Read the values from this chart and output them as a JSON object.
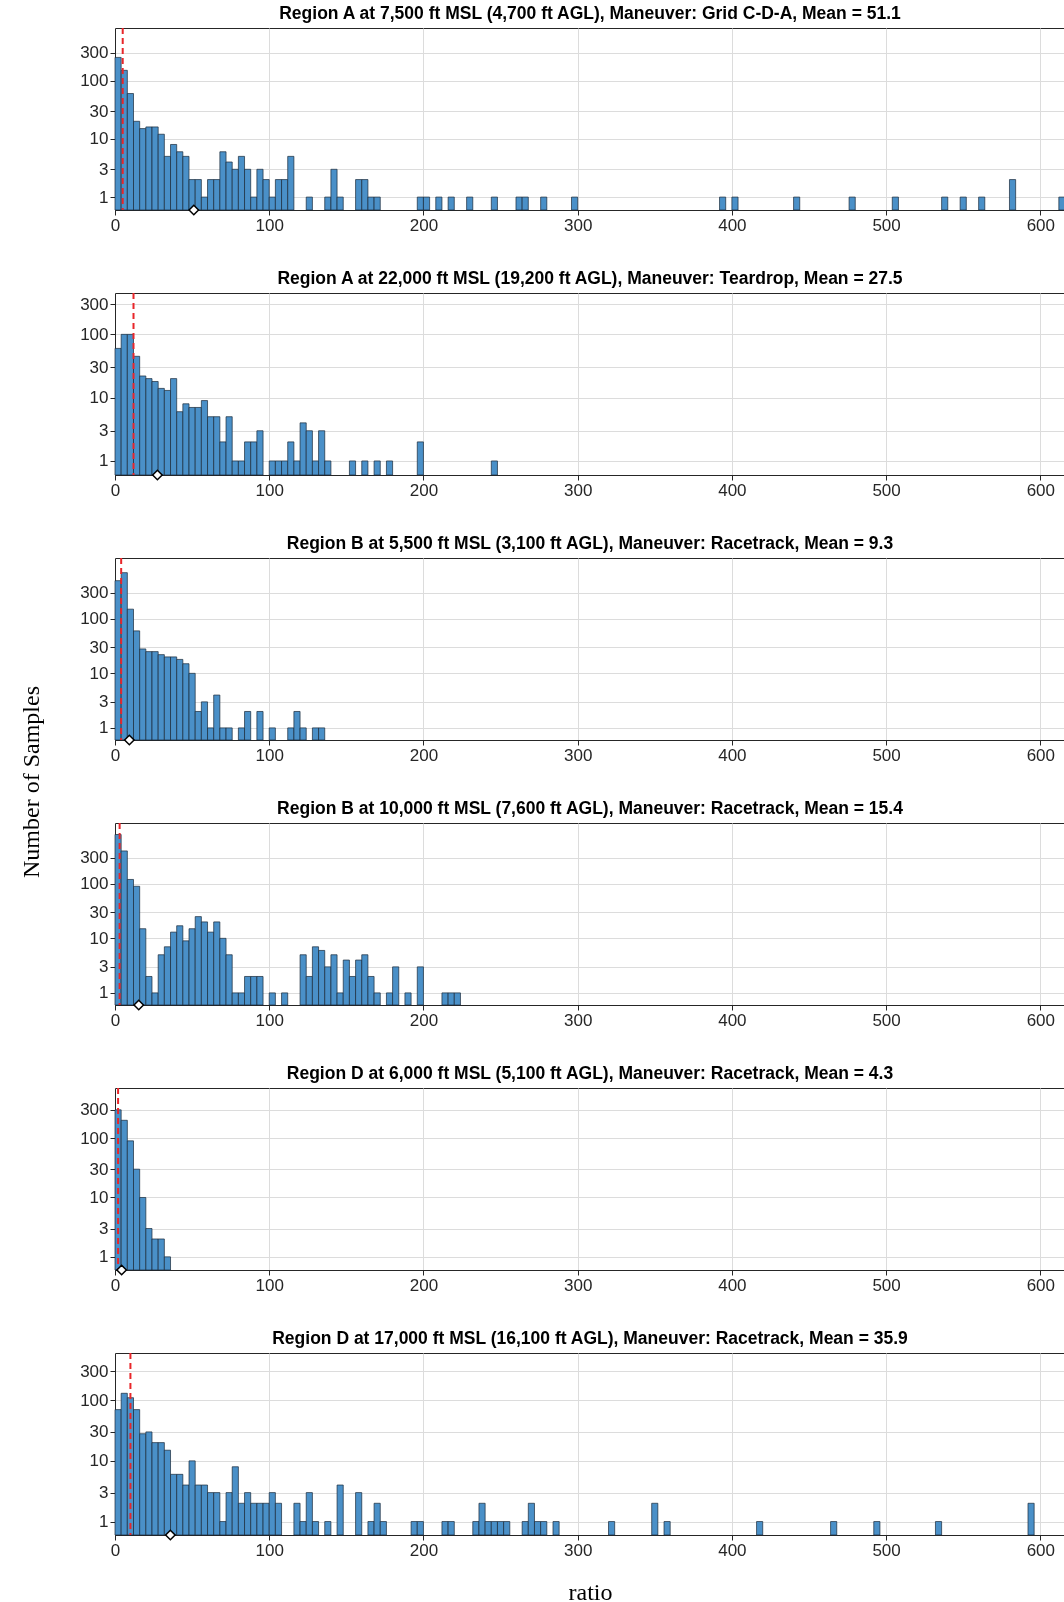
{
  "chart_data": [
    {
      "type": "histogram",
      "title": "Region A at 7,500 ft MSL (4,700 ft AGL), Maneuver: Grid C-D-A, Mean = 51.1",
      "color": "#4a90c8",
      "log": true,
      "grid": true,
      "xlim": [
        0,
        616
      ],
      "xticks": [
        0,
        100,
        200,
        300,
        400,
        500,
        600
      ],
      "ylim": [
        0.6,
        800
      ],
      "yticks": [
        1,
        3,
        10,
        30,
        100,
        300
      ],
      "bins": [
        0,
        4,
        8,
        12,
        16,
        20,
        24,
        28,
        32,
        36,
        40,
        44,
        48,
        52,
        56,
        60,
        64,
        68,
        72,
        76,
        80,
        84,
        88,
        92,
        96,
        100,
        104,
        108,
        112,
        116,
        120,
        124,
        128,
        132,
        136,
        140,
        144,
        148,
        152,
        156,
        160,
        164,
        168,
        172,
        176,
        180,
        184,
        188,
        192,
        196,
        200,
        204,
        208,
        212,
        216,
        220,
        224,
        228,
        232,
        236,
        240,
        244,
        248,
        252,
        256,
        260,
        264,
        268,
        272,
        276,
        280,
        284,
        288,
        292,
        296,
        300,
        304,
        308,
        312,
        316,
        320,
        324,
        328,
        332,
        336,
        340,
        344,
        348,
        352,
        356,
        360,
        364,
        368,
        372,
        376,
        380,
        384,
        388,
        392,
        396,
        400,
        404,
        408,
        412,
        416,
        420,
        424,
        428,
        432,
        436,
        440,
        444,
        448,
        452,
        456,
        460,
        464,
        468,
        472,
        476,
        480,
        484,
        488,
        492,
        496,
        500,
        504,
        508,
        512,
        516,
        520,
        524,
        528,
        532,
        536,
        540,
        544,
        548,
        552,
        556,
        560,
        564,
        568,
        572,
        576,
        580,
        584,
        588,
        592,
        596,
        600,
        604,
        608,
        612,
        616
      ],
      "values": [
        250,
        150,
        60,
        20,
        15,
        16,
        16,
        12,
        5,
        8,
        6,
        5,
        2,
        2,
        1,
        2,
        2,
        6,
        4,
        3,
        5,
        3,
        1,
        3,
        2,
        1,
        2,
        2,
        5,
        null,
        null,
        1,
        null,
        null,
        1,
        3,
        1,
        null,
        null,
        2,
        2,
        1,
        1,
        null,
        null,
        null,
        null,
        null,
        null,
        1,
        1,
        null,
        1,
        null,
        1,
        null,
        null,
        1,
        null,
        null,
        null,
        1,
        null,
        null,
        null,
        1,
        1,
        null,
        null,
        1,
        null,
        null,
        null,
        null,
        1,
        null,
        null,
        null,
        null,
        null,
        null,
        null,
        null,
        null,
        null,
        null,
        null,
        null,
        null,
        null,
        null,
        null,
        null,
        null,
        null,
        null,
        null,
        null,
        1,
        null,
        1,
        null,
        null,
        null,
        null,
        null,
        null,
        null,
        null,
        null,
        1,
        null,
        null,
        null,
        null,
        null,
        null,
        null,
        null,
        1,
        null,
        null,
        null,
        null,
        null,
        null,
        1,
        null,
        null,
        null,
        null,
        null,
        null,
        null,
        1,
        null,
        null,
        1,
        null,
        null,
        1,
        null,
        null,
        null,
        null,
        2,
        null,
        null,
        null,
        null,
        null,
        null,
        null,
        1
      ],
      "ref_lines": [
        {
          "axis": "x",
          "value": 5,
          "color": "#e8262a",
          "line_style": "dashed"
        }
      ],
      "series": [
        {
          "type": "scatter",
          "x": [
            51.1
          ],
          "values": [
            0.6
          ],
          "color": "#000000",
          "marker": "diamond"
        }
      ]
    },
    {
      "type": "histogram",
      "title": "Region A at 22,000 ft MSL (19,200 ft AGL), Maneuver: Teardrop, Mean = 27.5",
      "color": "#4a90c8",
      "log": true,
      "grid": true,
      "xlim": [
        0,
        616
      ],
      "xticks": [
        0,
        100,
        200,
        300,
        400,
        500,
        600
      ],
      "ylim": [
        0.6,
        450
      ],
      "yticks": [
        1,
        3,
        10,
        30,
        100,
        300
      ],
      "bins": [
        0,
        4,
        8,
        12,
        16,
        20,
        24,
        28,
        32,
        36,
        40,
        44,
        48,
        52,
        56,
        60,
        64,
        68,
        72,
        76,
        80,
        84,
        88,
        92,
        96,
        100,
        104,
        108,
        112,
        116,
        120,
        124,
        128,
        132,
        136,
        140,
        144,
        148,
        152,
        156,
        160,
        164,
        168,
        172,
        176,
        180,
        184,
        188,
        192,
        196,
        200,
        204,
        208,
        212,
        216,
        220,
        224,
        228,
        232,
        236,
        240,
        244,
        248
      ],
      "values": [
        60,
        100,
        100,
        45,
        22,
        20,
        18,
        14,
        13,
        20,
        6,
        8,
        7,
        7,
        9,
        5,
        5,
        2,
        5,
        1,
        1,
        2,
        2,
        3,
        null,
        1,
        1,
        1,
        2,
        1,
        4,
        3,
        1,
        3,
        1,
        null,
        null,
        null,
        1,
        null,
        1,
        null,
        1,
        null,
        1,
        null,
        null,
        null,
        null,
        2,
        null,
        null,
        null,
        null,
        null,
        null,
        null,
        null,
        null,
        null,
        null,
        1
      ],
      "ref_lines": [
        {
          "axis": "x",
          "value": 12,
          "color": "#e8262a",
          "line_style": "dashed"
        }
      ],
      "series": [
        {
          "type": "scatter",
          "x": [
            27.5
          ],
          "values": [
            0.6
          ],
          "color": "#000000",
          "marker": "diamond"
        }
      ]
    },
    {
      "type": "histogram",
      "title": "Region B at 5,500 ft MSL (3,100 ft AGL), Maneuver: Racetrack, Mean = 9.3",
      "ylabel": "Number of Samples",
      "color": "#4a90c8",
      "log": true,
      "grid": true,
      "xlim": [
        0,
        616
      ],
      "xticks": [
        0,
        100,
        200,
        300,
        400,
        500,
        600
      ],
      "ylim": [
        0.6,
        1300
      ],
      "yticks": [
        1,
        3,
        10,
        30,
        100,
        300
      ],
      "bins": [
        0,
        4,
        8,
        12,
        16,
        20,
        24,
        28,
        32,
        36,
        40,
        44,
        48,
        52,
        56,
        60,
        64,
        68,
        72,
        76,
        80,
        84,
        88,
        92,
        96,
        100,
        104,
        108,
        112,
        116,
        120,
        124,
        128,
        132,
        136
      ],
      "values": [
        500,
        700,
        150,
        60,
        28,
        25,
        25,
        22,
        20,
        20,
        18,
        15,
        10,
        2,
        3,
        1,
        4,
        1,
        1,
        null,
        1,
        2,
        null,
        2,
        null,
        1,
        null,
        null,
        1,
        2,
        1,
        null,
        1,
        1
      ],
      "ref_lines": [
        {
          "axis": "x",
          "value": 4,
          "color": "#e8262a",
          "line_style": "dashed"
        }
      ],
      "series": [
        {
          "type": "scatter",
          "x": [
            9.3
          ],
          "values": [
            0.6
          ],
          "color": "#000000",
          "marker": "diamond"
        }
      ]
    },
    {
      "type": "histogram",
      "title": "Region B at 10,000 ft MSL (7,600 ft AGL), Maneuver: Racetrack, Mean = 15.4",
      "color": "#4a90c8",
      "log": true,
      "grid": true,
      "xlim": [
        0,
        616
      ],
      "xticks": [
        0,
        100,
        200,
        300,
        400,
        500,
        600
      ],
      "ylim": [
        0.6,
        1300
      ],
      "yticks": [
        1,
        3,
        10,
        30,
        100,
        300
      ],
      "bins": [
        0,
        4,
        8,
        12,
        16,
        20,
        24,
        28,
        32,
        36,
        40,
        44,
        48,
        52,
        56,
        60,
        64,
        68,
        72,
        76,
        80,
        84,
        88,
        92,
        96,
        100,
        104,
        108,
        112,
        116,
        120,
        124,
        128,
        132,
        136,
        140,
        144,
        148,
        152,
        156,
        160,
        164,
        168,
        172,
        176,
        180,
        184,
        188,
        192,
        196,
        200,
        204,
        208,
        212,
        216,
        220,
        224
      ],
      "values": [
        800,
        400,
        120,
        90,
        15,
        2,
        1,
        5,
        7,
        13,
        17,
        9,
        15,
        25,
        20,
        13,
        20,
        10,
        5,
        1,
        1,
        2,
        2,
        2,
        null,
        1,
        null,
        1,
        null,
        null,
        5,
        2,
        7,
        6,
        3,
        5,
        1,
        4,
        2,
        4,
        5,
        2,
        1,
        null,
        1,
        3,
        null,
        1,
        null,
        3,
        null,
        null,
        null,
        1,
        1,
        1
      ],
      "ref_lines": [
        {
          "axis": "x",
          "value": 3,
          "color": "#e8262a",
          "line_style": "dashed"
        }
      ],
      "series": [
        {
          "type": "scatter",
          "x": [
            15.4
          ],
          "values": [
            0.6
          ],
          "color": "#000000",
          "marker": "diamond"
        }
      ]
    },
    {
      "type": "histogram",
      "title": "Region D at 6,000 ft MSL (5,100 ft AGL), Maneuver: Racetrack, Mean = 4.3",
      "color": "#4a90c8",
      "log": true,
      "grid": true,
      "xlim": [
        0,
        616
      ],
      "xticks": [
        0,
        100,
        200,
        300,
        400,
        500,
        600
      ],
      "ylim": [
        0.6,
        700
      ],
      "yticks": [
        1,
        3,
        10,
        30,
        100,
        300
      ],
      "bins": [
        0,
        4,
        8,
        12,
        16,
        20,
        24,
        28,
        32,
        36
      ],
      "values": [
        300,
        200,
        90,
        30,
        10,
        3,
        2,
        2,
        1
      ],
      "ref_lines": [
        {
          "axis": "x",
          "value": 2,
          "color": "#e8262a",
          "line_style": "dashed"
        }
      ],
      "series": [
        {
          "type": "scatter",
          "x": [
            4.3
          ],
          "values": [
            0.6
          ],
          "color": "#000000",
          "marker": "diamond"
        }
      ]
    },
    {
      "type": "histogram",
      "title": "Region D at 17,000 ft MSL (16,100 ft AGL), Maneuver: Racetrack, Mean = 35.9",
      "xlabel": "ratio",
      "color": "#4a90c8",
      "log": true,
      "grid": true,
      "xlim": [
        0,
        616
      ],
      "xticks": [
        0,
        100,
        200,
        300,
        400,
        500,
        600
      ],
      "ylim": [
        0.6,
        600
      ],
      "yticks": [
        1,
        3,
        10,
        30,
        100,
        300
      ],
      "bins": [
        0,
        4,
        8,
        12,
        16,
        20,
        24,
        28,
        32,
        36,
        40,
        44,
        48,
        52,
        56,
        60,
        64,
        68,
        72,
        76,
        80,
        84,
        88,
        92,
        96,
        100,
        104,
        108,
        112,
        116,
        120,
        124,
        128,
        132,
        136,
        140,
        144,
        148,
        152,
        156,
        160,
        164,
        168,
        172,
        176,
        180,
        184,
        188,
        192,
        196,
        200,
        204,
        208,
        212,
        216,
        220,
        224,
        228,
        232,
        236,
        240,
        244,
        248,
        252,
        256,
        260,
        264,
        268,
        272,
        276,
        280,
        284,
        288,
        292,
        296,
        300,
        304,
        308,
        312,
        316,
        320,
        324,
        328,
        332,
        336,
        340,
        344,
        348,
        352,
        356,
        360,
        364,
        368,
        372,
        376,
        380,
        384,
        388,
        392,
        396,
        400,
        404,
        408,
        412,
        416,
        420,
        424,
        428,
        432,
        436,
        440,
        444,
        448,
        452,
        456,
        460,
        464,
        468,
        472,
        476,
        480,
        484,
        488,
        492,
        496,
        500,
        504,
        508,
        512,
        516,
        520,
        524,
        528,
        532,
        536,
        540,
        544,
        548,
        552,
        556,
        560,
        564,
        568,
        572,
        576,
        580,
        584,
        588,
        592,
        596
      ],
      "values": [
        70,
        130,
        110,
        70,
        28,
        30,
        20,
        20,
        15,
        6,
        6,
        4,
        10,
        4,
        4,
        3,
        3,
        1,
        3,
        8,
        2,
        3,
        2,
        2,
        2,
        3,
        2,
        null,
        null,
        2,
        1,
        3,
        1,
        null,
        1,
        null,
        4,
        null,
        null,
        3,
        null,
        1,
        2,
        1,
        null,
        null,
        null,
        null,
        1,
        1,
        null,
        null,
        null,
        1,
        1,
        null,
        null,
        null,
        1,
        2,
        1,
        1,
        1,
        1,
        null,
        null,
        1,
        2,
        1,
        1,
        null,
        1,
        null,
        null,
        null,
        null,
        null,
        null,
        null,
        null,
        1,
        null,
        null,
        null,
        null,
        null,
        null,
        2,
        null,
        1,
        null,
        null,
        null,
        null,
        null,
        null,
        null,
        null,
        null,
        null,
        null,
        null,
        null,
        null,
        1,
        null,
        null,
        null,
        null,
        null,
        null,
        null,
        null,
        null,
        null,
        null,
        1,
        null,
        null,
        null,
        null,
        null,
        null,
        1,
        null,
        null,
        null,
        null,
        null,
        null,
        null,
        null,
        null,
        1,
        null,
        null,
        null,
        null,
        null,
        null,
        null,
        null,
        null,
        null,
        null,
        null,
        null,
        null,
        2
      ],
      "ref_lines": [
        {
          "axis": "x",
          "value": 10,
          "color": "#e8262a",
          "line_style": "dashed"
        }
      ],
      "series": [
        {
          "type": "scatter",
          "x": [
            35.9
          ],
          "values": [
            0.6
          ],
          "color": "#000000",
          "marker": "diamond"
        }
      ]
    }
  ]
}
